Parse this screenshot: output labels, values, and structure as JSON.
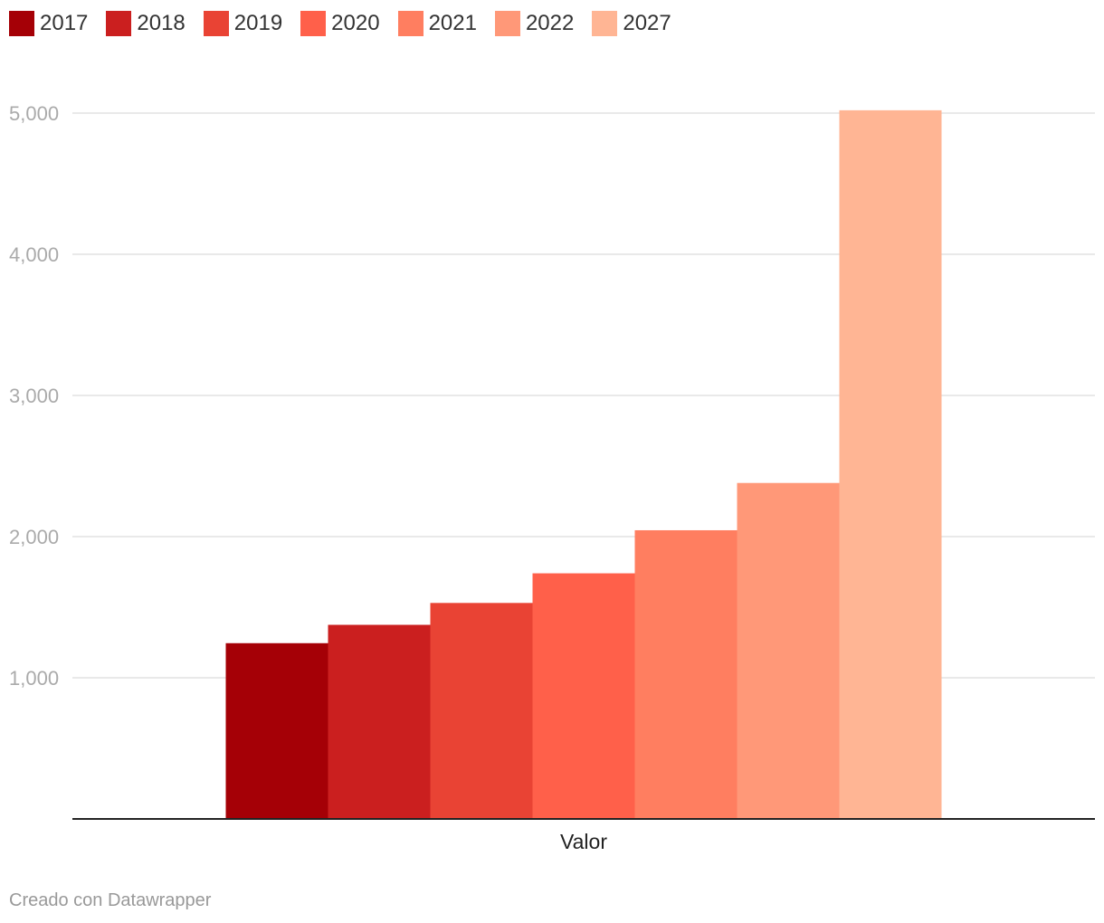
{
  "chart_data": {
    "type": "bar",
    "title": "",
    "xlabel": "",
    "ylabel": "",
    "categories": [
      "Valor"
    ],
    "series": [
      {
        "name": "2017",
        "values": [
          1245
        ],
        "color": "#a50006"
      },
      {
        "name": "2018",
        "values": [
          1375
        ],
        "color": "#cb1f1f"
      },
      {
        "name": "2019",
        "values": [
          1530
        ],
        "color": "#e94334"
      },
      {
        "name": "2020",
        "values": [
          1740
        ],
        "color": "#ff604a"
      },
      {
        "name": "2021",
        "values": [
          2045
        ],
        "color": "#ff7e60"
      },
      {
        "name": "2022",
        "values": [
          2380
        ],
        "color": "#ff9878"
      },
      {
        "name": "2027",
        "values": [
          5020
        ],
        "color": "#ffb594"
      }
    ],
    "ylim": [
      0,
      5000
    ],
    "yticks": [
      1000,
      2000,
      3000,
      4000,
      5000
    ],
    "ytick_labels": [
      "1,000",
      "2,000",
      "3,000",
      "4,000",
      "5,000"
    ],
    "grid": true,
    "legend_position": "top-left"
  },
  "footer": {
    "credit": "Creado con Datawrapper"
  }
}
